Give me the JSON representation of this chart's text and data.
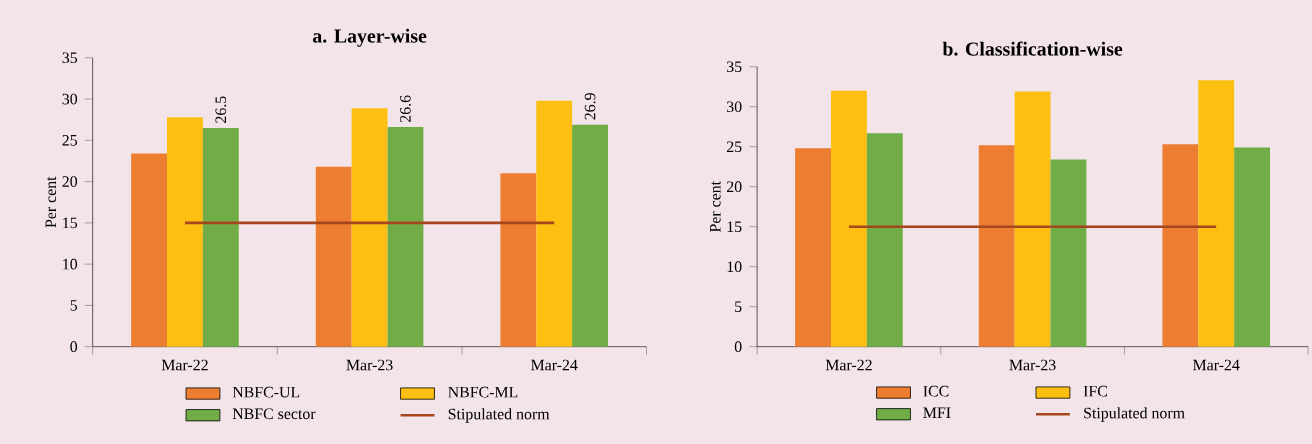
{
  "chart_data": [
    {
      "type": "bar",
      "title": "a. Layer-wise",
      "ylabel": "Per cent",
      "categories": [
        "Mar-22",
        "Mar-23",
        "Mar-24"
      ],
      "ylim": [
        0,
        35
      ],
      "yticks": [
        0,
        5,
        10,
        15,
        20,
        25,
        30,
        35
      ],
      "legend": "bottom",
      "series": [
        {
          "name": "NBFC-UL",
          "color": "#ed7d31",
          "values": [
            23.4,
            21.8,
            21.0
          ]
        },
        {
          "name": "NBFC-ML",
          "color": "#fdc012",
          "values": [
            27.8,
            28.9,
            29.8
          ]
        },
        {
          "name": "NBFC sector",
          "color": "#70ad47",
          "values": [
            26.5,
            26.6,
            26.9
          ],
          "value_labels": [
            "26.5",
            "26.6",
            "26.9"
          ]
        },
        {
          "name": "Stipulated norm",
          "type": "line",
          "color": "#a5461c",
          "values": [
            15,
            15,
            15
          ]
        }
      ]
    },
    {
      "type": "bar",
      "title": "b. Classification-wise",
      "ylabel": "Per cent",
      "categories": [
        "Mar-22",
        "Mar-23",
        "Mar-24"
      ],
      "ylim": [
        0,
        35
      ],
      "yticks": [
        0,
        5,
        10,
        15,
        20,
        25,
        30,
        35
      ],
      "legend": "bottom",
      "series": [
        {
          "name": "ICC",
          "color": "#ed7d31",
          "values": [
            24.8,
            25.2,
            25.3
          ]
        },
        {
          "name": "IFC",
          "color": "#fdc012",
          "values": [
            32.0,
            31.9,
            33.3
          ]
        },
        {
          "name": "MFI",
          "color": "#70ad47",
          "values": [
            26.7,
            23.4,
            24.9
          ]
        },
        {
          "name": "Stipulated norm",
          "type": "line",
          "color": "#a5461c",
          "values": [
            15,
            15,
            15
          ]
        }
      ]
    }
  ]
}
